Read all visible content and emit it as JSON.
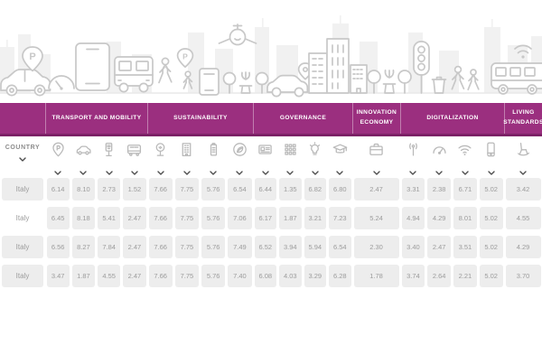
{
  "header": {
    "accent_color": "#9b2f7f",
    "accent_dark_edge": "#7c2166",
    "groups": [
      {
        "label": "TRANSPORT AND MOBILITY",
        "columns": 4
      },
      {
        "label": "SUSTAINABILITY",
        "columns": 4
      },
      {
        "label": "GOVERNANCE",
        "columns": 4
      },
      {
        "label": "INNOVATION ECONOMY",
        "columns": 1
      },
      {
        "label": "DIGITALIZATION",
        "columns": 4
      },
      {
        "label": "LIVING STANDARDS",
        "columns": 1
      }
    ]
  },
  "country_column": {
    "label": "COUNTRY"
  },
  "columns": [
    {
      "icon": "parking-pin-icon",
      "group": "TRANSPORT AND MOBILITY"
    },
    {
      "icon": "car-icon",
      "group": "TRANSPORT AND MOBILITY"
    },
    {
      "icon": "parking-meter-icon",
      "group": "TRANSPORT AND MOBILITY"
    },
    {
      "icon": "bus-icon",
      "group": "TRANSPORT AND MOBILITY"
    },
    {
      "icon": "tree-icon",
      "group": "SUSTAINABILITY"
    },
    {
      "icon": "green-building-icon",
      "group": "SUSTAINABILITY"
    },
    {
      "icon": "battery-icon",
      "group": "SUSTAINABILITY"
    },
    {
      "icon": "eco-leaf-icon",
      "group": "SUSTAINABILITY"
    },
    {
      "icon": "id-card-icon",
      "group": "GOVERNANCE"
    },
    {
      "icon": "grid-icon",
      "group": "GOVERNANCE"
    },
    {
      "icon": "lightbulb-icon",
      "group": "GOVERNANCE"
    },
    {
      "icon": "graduation-cap-icon",
      "group": "GOVERNANCE"
    },
    {
      "icon": "briefcase-icon",
      "group": "INNOVATION ECONOMY"
    },
    {
      "icon": "antenna-icon",
      "group": "DIGITALIZATION"
    },
    {
      "icon": "gauge-icon",
      "group": "DIGITALIZATION"
    },
    {
      "icon": "wifi-icon",
      "group": "DIGITALIZATION"
    },
    {
      "icon": "smartphone-icon",
      "group": "DIGITALIZATION"
    },
    {
      "icon": "rocking-chair-icon",
      "group": "LIVING STANDARDS"
    }
  ],
  "rows": [
    {
      "country": "Italy",
      "filled": true,
      "values": [
        "6.14",
        "8.10",
        "2.73",
        "1.52",
        "7.66",
        "7.75",
        "5.76",
        "6.54",
        "6.44",
        "1.35",
        "6.82",
        "6.80",
        "2.47",
        "3.31",
        "2.38",
        "6.71",
        "5.02",
        "3.42"
      ]
    },
    {
      "country": "Italy",
      "filled": false,
      "values": [
        "6.45",
        "8.18",
        "5.41",
        "2.47",
        "7.66",
        "7.75",
        "5.76",
        "7.06",
        "6.17",
        "1.87",
        "3.21",
        "7.23",
        "5.24",
        "4.94",
        "4.29",
        "8.01",
        "5.02",
        "4.55"
      ]
    },
    {
      "country": "Italy",
      "filled": true,
      "values": [
        "6.56",
        "8.27",
        "7.84",
        "2.47",
        "7.66",
        "7.75",
        "5.76",
        "7.49",
        "6.52",
        "3.94",
        "5.94",
        "6.54",
        "2.30",
        "3.40",
        "2.47",
        "3.51",
        "5.02",
        "4.29"
      ]
    },
    {
      "country": "Italy",
      "filled": true,
      "values": [
        "3.47",
        "1.87",
        "4.55",
        "2.47",
        "7.66",
        "7.75",
        "5.76",
        "7.40",
        "6.08",
        "4.03",
        "3.29",
        "6.28",
        "1.78",
        "3.74",
        "2.64",
        "2.21",
        "5.02",
        "3.70"
      ]
    }
  ]
}
